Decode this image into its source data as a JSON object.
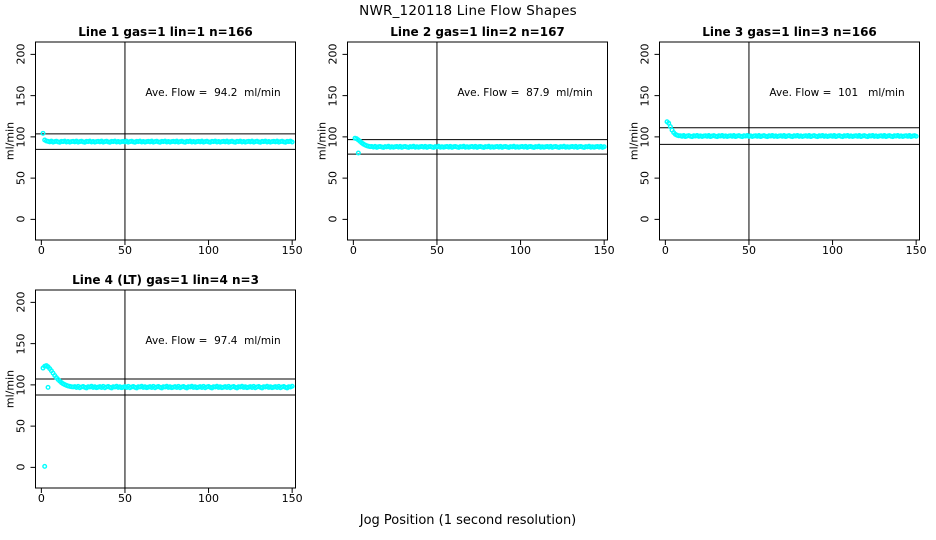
{
  "page": {
    "title": "NWR_120118  Line Flow Shapes",
    "xlabel": "Jog Position (1 second resolution)"
  },
  "chart_data": {
    "type": "scatter",
    "title": "NWR_120118  Line Flow Shapes",
    "xlabel": "Jog Position (1 second resolution)",
    "ylabel": "ml/min",
    "grid": false,
    "legend": "none",
    "point_color": "#00FFFF",
    "line_color": "#000000",
    "x_ticks": [
      0,
      50,
      100,
      150
    ],
    "y_ticks": [
      0,
      50,
      100,
      150,
      200
    ],
    "x_range": [
      -3.5,
      152
    ],
    "y_range": [
      -25,
      215
    ],
    "plots": [
      {
        "title": "Line 1 gas=1 lin=1 n=166",
        "annotation": "Ave. Flow =  94.2  ml/min",
        "ave_flow": 94.2,
        "n": 166,
        "hline_upper": 103.6,
        "hline_lower": 84.8,
        "vline_x": 50,
        "x_start": 1,
        "x_step": 1,
        "y": [
          104.3,
          96.2,
          95,
          94.6,
          93.9,
          94.8,
          93.6,
          94.3,
          94.7,
          94,
          93.5,
          94.5,
          94.2,
          94.9,
          93.8,
          94.4,
          93.7,
          94.3,
          94.6,
          93.9,
          94.8,
          93.6,
          94.3,
          94.7,
          94,
          93.5,
          94.5,
          94.2,
          94.9,
          93.8,
          94.4,
          93.7,
          94.3,
          94.6,
          93.9,
          94.8,
          93.6,
          94.3,
          94.7,
          94,
          93.5,
          94.5,
          94.2,
          94.9,
          93.8,
          94.4,
          93.7,
          94.3,
          94.6,
          93.9,
          94.8,
          93.6,
          94.3,
          94.7,
          94,
          93.5,
          94.5,
          94.2,
          94.9,
          93.8,
          94.4,
          93.7,
          94.3,
          94.6,
          93.9,
          94.8,
          93.6,
          94.3,
          94.7,
          94,
          93.5,
          94.5,
          94.2,
          94.9,
          93.8,
          94.4,
          93.7,
          94.3,
          94.6,
          93.9,
          94.8,
          93.6,
          94.3,
          94.7,
          94,
          93.5,
          94.5,
          94.2,
          94.9,
          93.8,
          94.4,
          93.7,
          94.3,
          94.6,
          93.9,
          94.8,
          93.6,
          94.3,
          94.7,
          94,
          93.5,
          94.5,
          94.2,
          94.9,
          93.8,
          94.4,
          93.7,
          94.3,
          94.6,
          93.9,
          94.8,
          93.6,
          94.3,
          94.7,
          94,
          93.5,
          94.5,
          94.2,
          94.9,
          93.8,
          94.4,
          93.7,
          94.3,
          94.6,
          93.9,
          94.8,
          93.6,
          94.3,
          94.7,
          94,
          93.5,
          94.5,
          94.2,
          94.9,
          93.8,
          94.4,
          93.7,
          94.3,
          94.6,
          93.9,
          94.8,
          93.6,
          94.3,
          94.7,
          94,
          93.5,
          94.5,
          94.2,
          94.9,
          93.8
        ],
        "extra_points": []
      },
      {
        "title": "Line 2 gas=1 lin=2 n=167",
        "annotation": "Ave. Flow =  87.9  ml/min",
        "ave_flow": 87.9,
        "n": 167,
        "hline_upper": 96.7,
        "hline_lower": 79.1,
        "vline_x": 50,
        "x_start": 1,
        "x_step": 1,
        "y": [
          98.4,
          97.7,
          96.2,
          94.5,
          92.8,
          91.3,
          90.1,
          89.2,
          88.6,
          88.2,
          88.3,
          87.6,
          88.5,
          87.3,
          88,
          88.4,
          87.7,
          87.2,
          88.2,
          87.9,
          88.6,
          87.5,
          88.1,
          87.4,
          88,
          88.3,
          87.6,
          88.5,
          87.3,
          88,
          88.4,
          87.7,
          87.2,
          88.2,
          87.9,
          88.6,
          87.5,
          88.1,
          87.4,
          88,
          88.3,
          87.6,
          88.5,
          87.3,
          88,
          88.4,
          87.7,
          87.2,
          88.2,
          87.9,
          88.6,
          87.5,
          88.1,
          87.4,
          88,
          88.3,
          87.6,
          88.5,
          87.3,
          88,
          88.4,
          87.7,
          87.2,
          88.2,
          87.9,
          88.6,
          87.5,
          88.1,
          87.4,
          88,
          88.3,
          87.6,
          88.5,
          87.3,
          88,
          88.4,
          87.7,
          87.2,
          88.2,
          87.9,
          88.6,
          87.5,
          88.1,
          87.4,
          88,
          88.3,
          87.6,
          88.5,
          87.3,
          88,
          88.4,
          87.7,
          87.2,
          88.2,
          87.9,
          88.6,
          87.5,
          88.1,
          87.4,
          88,
          88.3,
          87.6,
          88.5,
          87.3,
          88,
          88.4,
          87.7,
          87.2,
          88.2,
          87.9,
          88.6,
          87.5,
          88.1,
          87.4,
          88,
          88.3,
          87.6,
          88.5,
          87.3,
          88,
          88.4,
          87.7,
          87.2,
          88.2,
          87.9,
          88.6,
          87.5,
          88.1,
          87.4,
          88,
          88.3,
          87.6,
          88.5,
          87.3,
          88,
          88.4,
          87.7,
          87.2,
          88.2,
          87.9,
          88.6,
          87.5,
          88.1,
          87.4,
          88,
          88.3,
          87.6,
          88.5,
          87.3,
          88
        ],
        "extra_points": [
          [
            3,
            80.5
          ]
        ]
      },
      {
        "title": "Line 3 gas=1 lin=3 n=166",
        "annotation": "Ave. Flow =  101   ml/min",
        "ave_flow": 101,
        "n": 166,
        "hline_upper": 111.1,
        "hline_lower": 90.9,
        "vline_x": 50,
        "x_start": 1,
        "x_step": 1,
        "y": [
          118.3,
          116.6,
          112.4,
          108.2,
          105.1,
          103.1,
          102,
          101.4,
          101.4,
          100.7,
          101.6,
          100.4,
          101.1,
          101.5,
          100.8,
          100.3,
          101.3,
          101,
          101.7,
          100.6,
          101.2,
          100.5,
          101.1,
          101.4,
          100.7,
          101.6,
          100.4,
          101.1,
          101.5,
          100.8,
          100.3,
          101.3,
          101,
          101.7,
          100.6,
          101.2,
          100.5,
          101.1,
          101.4,
          100.7,
          101.6,
          100.4,
          101.1,
          101.5,
          100.8,
          100.3,
          101.3,
          101,
          101.7,
          100.6,
          101.2,
          100.5,
          101.1,
          101.4,
          100.7,
          101.6,
          100.4,
          101.1,
          101.5,
          100.8,
          100.3,
          101.3,
          101,
          101.7,
          100.6,
          101.2,
          100.5,
          101.1,
          101.4,
          100.7,
          101.6,
          100.4,
          101.1,
          101.5,
          100.8,
          100.3,
          101.3,
          101,
          101.7,
          100.6,
          101.2,
          100.5,
          101.1,
          101.4,
          100.7,
          101.6,
          100.4,
          101.1,
          101.5,
          100.8,
          100.3,
          101.3,
          101,
          101.7,
          100.6,
          101.2,
          100.5,
          101.1,
          101.4,
          100.7,
          101.6,
          100.4,
          101.1,
          101.5,
          100.8,
          100.3,
          101.3,
          101,
          101.7,
          100.6,
          101.2,
          100.5,
          101.1,
          101.4,
          100.7,
          101.6,
          100.4,
          101.1,
          101.5,
          100.8,
          100.3,
          101.3,
          101,
          101.7,
          100.6,
          101.2,
          100.5,
          101.1,
          101.4,
          100.7,
          101.6,
          100.4,
          101.1,
          101.5,
          100.8,
          100.3,
          101.3,
          101,
          101.7,
          100.6,
          101.2,
          100.5,
          101.1,
          101.4,
          100.7,
          101.6,
          100.4,
          101.1,
          101.5,
          100.8
        ],
        "extra_points": []
      },
      {
        "title": "Line 4 (LT) gas=1 lin=4 n=3",
        "annotation": "Ave. Flow =  97.4  ml/min",
        "ave_flow": 97.4,
        "n": 3,
        "hline_upper": 107.1,
        "hline_lower": 87.7,
        "vline_x": 50,
        "x_start": 1,
        "x_step": 1,
        "y": [
          120.4,
          122.6,
          123.4,
          121.9,
          119.7,
          117.1,
          114.2,
          111.4,
          108.8,
          106.5,
          104.5,
          102.8,
          101.4,
          100.3,
          99.4,
          98.7,
          98.2,
          97.8,
          97.5,
          97.9,
          96.8,
          98.2,
          96.5,
          97.5,
          98,
          97,
          96.3,
          97.8,
          97.4,
          98.3,
          96.9,
          97.7,
          96.6,
          97.2,
          97.9,
          96.8,
          98.2,
          96.5,
          97.5,
          98,
          97,
          96.3,
          97.8,
          97.4,
          98.3,
          96.9,
          97.7,
          96.6,
          97.2,
          97.9,
          96.8,
          98.2,
          96.5,
          97.5,
          98,
          97,
          96.3,
          97.8,
          97.4,
          98.3,
          96.9,
          97.7,
          96.6,
          97.2,
          97.9,
          96.8,
          98.2,
          96.5,
          97.5,
          98,
          97,
          96.3,
          97.8,
          97.4,
          98.3,
          96.9,
          97.7,
          96.6,
          97.2,
          97.9,
          96.8,
          98.2,
          96.5,
          97.5,
          98,
          97,
          96.3,
          97.8,
          97.4,
          98.3,
          96.9,
          97.7,
          96.6,
          97.2,
          97.9,
          96.8,
          98.2,
          96.5,
          97.5,
          98,
          97,
          96.3,
          97.8,
          97.4,
          98.3,
          96.9,
          97.7,
          96.6,
          97.2,
          97.9,
          96.8,
          98.2,
          96.5,
          97.5,
          98,
          97,
          96.3,
          97.8,
          97.4,
          98.3,
          96.9,
          97.7,
          96.6,
          97.2,
          97.9,
          96.8,
          98.2,
          96.5,
          97.5,
          98,
          97,
          96.3,
          97.8,
          97.4,
          98.3,
          96.9,
          97.7,
          96.6,
          97.2,
          97.9,
          96.8,
          98.2,
          96.5,
          97.5,
          98,
          97,
          96.3,
          97.8,
          97.4,
          98.3
        ],
        "extra_points": [
          [
            2,
            1.2
          ],
          [
            4,
            97.0
          ]
        ]
      }
    ]
  }
}
